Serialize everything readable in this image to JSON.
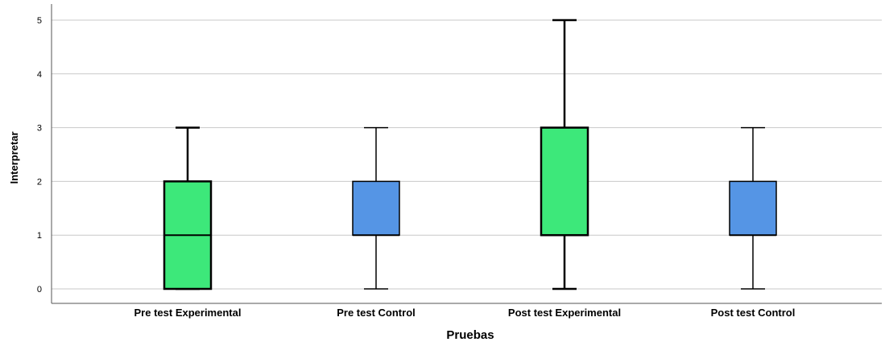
{
  "chart_data": {
    "type": "boxplot",
    "xlabel": "Pruebas",
    "ylabel": "Interpretar",
    "ylim": [
      0,
      5
    ],
    "yticks": [
      "0",
      "1",
      "2",
      "3",
      "4",
      "5"
    ],
    "grid": true,
    "categories": [
      "Pre test Experimental",
      "Pre test Control",
      "Post test Experimental",
      "Post test Control"
    ],
    "boxes": [
      {
        "min": 0,
        "q1": 0,
        "median": 1,
        "q3": 2,
        "max": 3,
        "color": "#3de87a"
      },
      {
        "min": 0,
        "q1": 1,
        "median": 1,
        "q3": 2,
        "max": 3,
        "color": "#5595e5"
      },
      {
        "min": 0,
        "q1": 1,
        "median": 1,
        "q3": 3,
        "max": 5,
        "color": "#3de87a"
      },
      {
        "min": 0,
        "q1": 1,
        "median": 1,
        "q3": 2,
        "max": 3,
        "color": "#5595e5"
      }
    ]
  }
}
